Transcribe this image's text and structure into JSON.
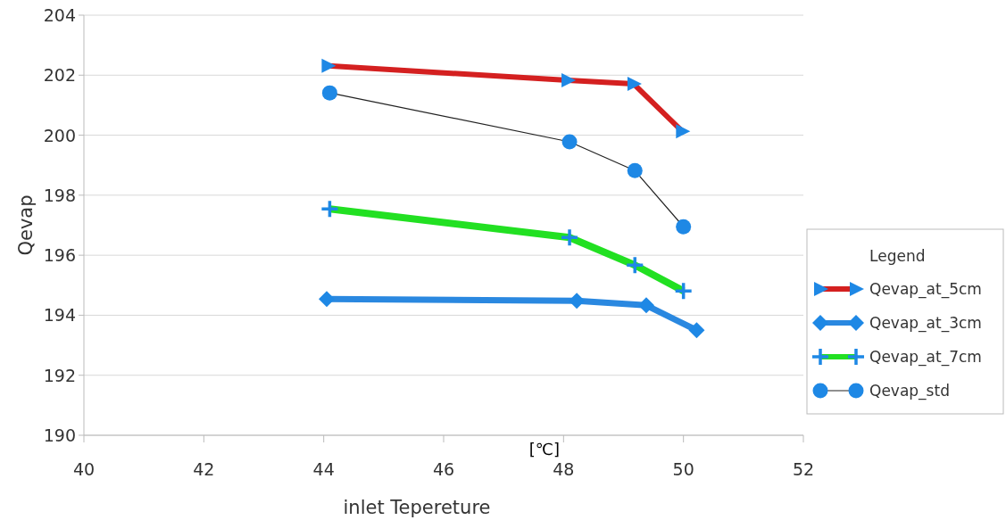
{
  "chart_data": {
    "type": "line",
    "xlabel": "inlet Tepereture",
    "ylabel": "Qevap",
    "legend_title": "Legend",
    "legend": "right",
    "grid": "y",
    "xlim": [
      40,
      52
    ],
    "xticks": [
      40,
      42,
      44,
      46,
      48,
      50,
      52
    ],
    "ylim": [
      190,
      204
    ],
    "yticks": [
      190,
      192,
      194,
      196,
      198,
      200,
      202,
      204
    ],
    "annotations": [
      "[℃]"
    ],
    "series": [
      {
        "name": "Qevap_at_5cm",
        "color": "#d42020",
        "marker": "triangle",
        "x": [
          44.07,
          48.07,
          49.17,
          49.98
        ],
        "values": [
          202.31,
          201.83,
          201.71,
          200.13
        ]
      },
      {
        "name": "Qevap_at_3cm",
        "color": "#2a88e0",
        "marker": "diamond",
        "x": [
          44.05,
          48.22,
          49.38,
          50.22
        ],
        "values": [
          194.54,
          194.48,
          194.33,
          193.5
        ]
      },
      {
        "name": "Qevap_at_7cm",
        "color": "#22e022",
        "marker": "cross",
        "x": [
          44.1,
          48.1,
          49.19,
          50.0
        ],
        "values": [
          197.54,
          196.59,
          195.67,
          194.81
        ]
      },
      {
        "name": "Qevap_std",
        "color": "#222222",
        "marker": "circle",
        "x": [
          44.1,
          48.1,
          49.19,
          50.0
        ],
        "values": [
          201.41,
          199.78,
          198.82,
          196.95
        ]
      }
    ]
  }
}
